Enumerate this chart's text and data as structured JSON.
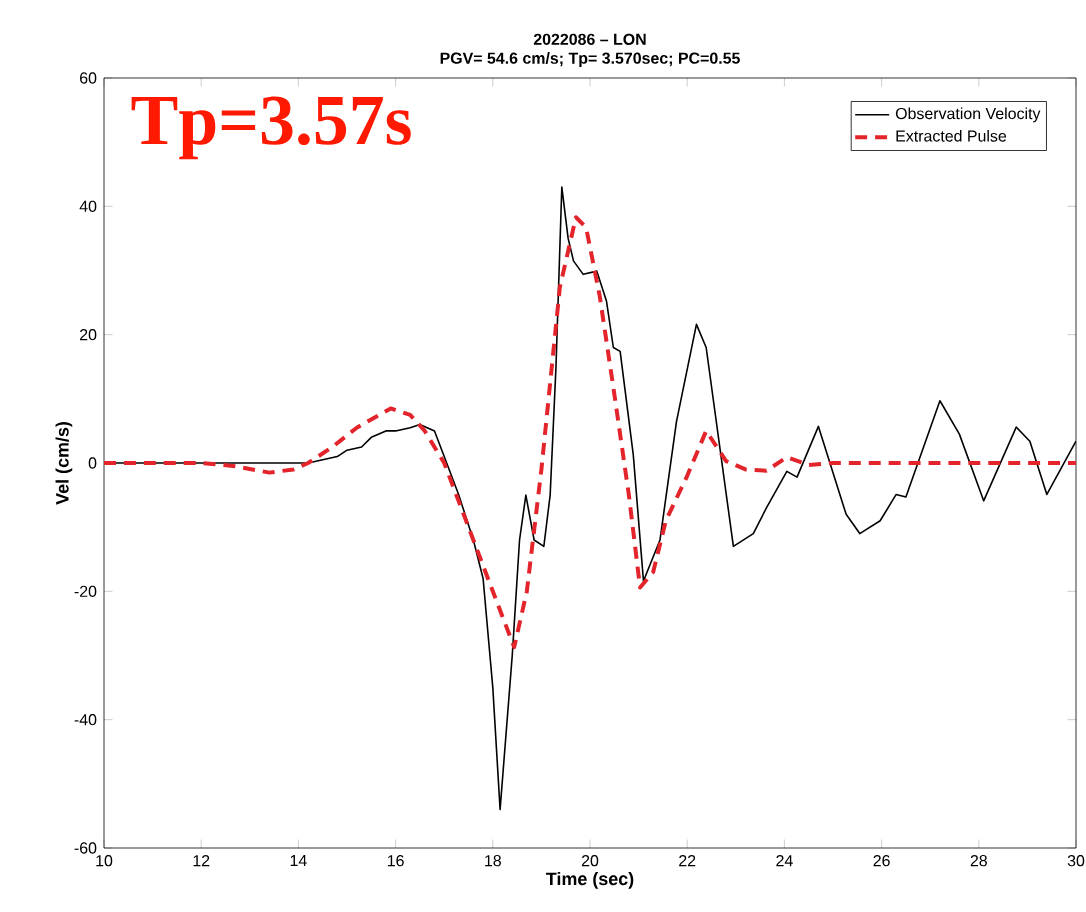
{
  "chart_data": {
    "type": "line",
    "title": "2022086 – LON",
    "subtitle": "PGV=   54.6 cm/s; Tp= 3.570sec; PC=0.55",
    "xlabel": "Time (sec)",
    "ylabel": "Vel (cm/s)",
    "annotations": [
      "Tp=3.57s"
    ],
    "xlim": [
      10,
      30
    ],
    "ylim": [
      -60,
      60
    ],
    "xticks": [
      10,
      12,
      14,
      16,
      18,
      20,
      22,
      24,
      26,
      28,
      30
    ],
    "yticks": [
      -60,
      -40,
      -20,
      0,
      20,
      40,
      60
    ],
    "grid": false,
    "legend": "top right",
    "series": [
      {
        "name": "Observation Velocity",
        "color": "#000000",
        "line_style": "solid",
        "x": [
          10,
          14.2,
          14.5,
          14.8,
          15,
          15.3,
          15.5,
          15.8,
          16,
          16.3,
          16.5,
          16.8,
          17,
          17.3,
          17.6,
          17.8,
          18,
          18.15,
          18.4,
          18.55,
          18.68,
          18.85,
          19.05,
          19.18,
          19.3,
          19.42,
          19.55,
          19.66,
          19.86,
          20.14,
          20.34,
          20.48,
          20.62,
          20.89,
          21.1,
          21.44,
          21.78,
          22.19,
          22.39,
          22.95,
          23.36,
          23.63,
          24.05,
          24.26,
          24.7,
          25.27,
          25.55,
          25.97,
          26.3,
          26.5,
          27.2,
          27.6,
          28.1,
          28.77,
          29.05,
          29.4,
          30
        ],
        "values": [
          0,
          0,
          0.5,
          1,
          2,
          2.5,
          4,
          5,
          5,
          5.5,
          6,
          5,
          1,
          -5,
          -12,
          -18,
          -35,
          -54,
          -30,
          -12,
          -5,
          -12,
          -13,
          -5,
          15,
          43,
          35,
          31.5,
          29.4,
          29.9,
          25.2,
          18,
          17.4,
          1.3,
          -18.4,
          -12,
          6.5,
          21.6,
          18,
          -13,
          -11,
          -7,
          -1.3,
          -2.2,
          5.7,
          -8,
          -11,
          -9,
          -4.9,
          -5.3,
          9.7,
          4.5,
          -5.9,
          5.6,
          3.4,
          -4.9,
          3.4
        ]
      },
      {
        "name": "Extracted Pulse",
        "color": "#e3242b",
        "line_style": "dashed",
        "x": [
          10,
          12,
          12.7,
          13.4,
          13.9,
          14.2,
          14.7,
          15.2,
          15.9,
          16.3,
          16.6,
          17,
          17.5,
          18,
          18.44,
          18.7,
          19,
          19.38,
          19.71,
          19.92,
          20.2,
          20.48,
          20.8,
          21.03,
          21.3,
          21.56,
          22,
          22.39,
          22.8,
          23.2,
          23.63,
          24.05,
          24.5,
          25,
          30
        ],
        "values": [
          0,
          0,
          -0.5,
          -1.5,
          -1,
          0,
          2.5,
          5.5,
          8.5,
          7.5,
          5,
          0,
          -10,
          -20,
          -28.7,
          -20,
          -1,
          27.4,
          38.3,
          36.7,
          26,
          11.8,
          -5,
          -19.4,
          -17,
          -9,
          -2,
          5,
          0.3,
          -1,
          -1.2,
          0.9,
          -0.3,
          0,
          0
        ]
      }
    ]
  }
}
